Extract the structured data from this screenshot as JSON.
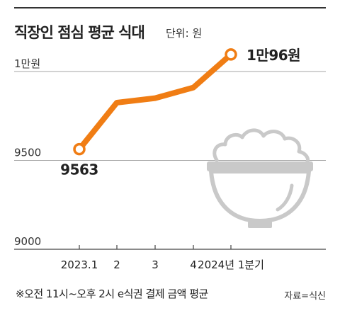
{
  "header": {
    "title": "직장인 점심 평균 식대",
    "unit": "단위: 원"
  },
  "footer": {
    "note": "※오전 11시~오후 2시 e식권 결제 금액 평균",
    "source": "자료=식신"
  },
  "chart_data": {
    "type": "line",
    "categories": [
      "2023.1",
      "2",
      "3",
      "4",
      "2024년 1분기"
    ],
    "values": [
      9563,
      9825,
      9850,
      9910,
      10096
    ],
    "ylim": [
      9000,
      10000
    ],
    "yticks": [
      {
        "value": 9000,
        "label": "9000"
      },
      {
        "value": 9500,
        "label": "9500"
      },
      {
        "value": 10000,
        "label": "1만원"
      }
    ],
    "point_labels": [
      {
        "index": 0,
        "text": "9563"
      },
      {
        "index": 4,
        "text": "1만96원"
      }
    ],
    "grid": true,
    "line_color": "#f07d14",
    "icon": "rice-bowl-icon"
  }
}
